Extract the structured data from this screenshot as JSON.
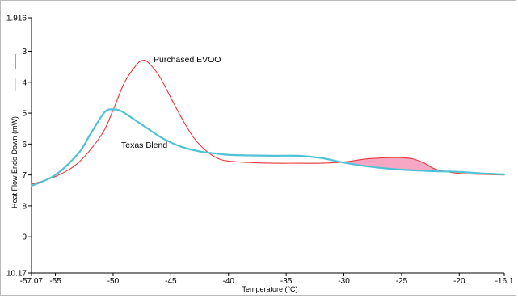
{
  "chart_data": {
    "type": "line",
    "title": "",
    "xlabel": "Temperature (°C)",
    "ylabel": "Heat Flow Endo Down (mW)",
    "xlim": [
      -57.07,
      -16.1
    ],
    "ylim": [
      1.916,
      10.17
    ],
    "y_inverted": true,
    "grid": false,
    "x_ticks": [
      -57.07,
      -55,
      -50,
      -45,
      -40,
      -35,
      -30,
      -25,
      -20,
      -16.1
    ],
    "x_tick_labels": [
      "-57.07",
      "-55",
      "-50",
      "-45",
      "-40",
      "-35",
      "-30",
      "-25",
      "-20",
      "-16.1"
    ],
    "y_ticks": [
      1.916,
      3,
      4,
      5,
      6,
      7,
      8,
      9,
      10.17
    ],
    "y_tick_labels": [
      "1.916",
      "3",
      "4",
      "5",
      "6",
      "7",
      "8",
      "9",
      "10.17"
    ],
    "legend_colors": [
      "#4fc3d6",
      "#8fd0dc"
    ],
    "series": [
      {
        "name": "Purchased EVOO",
        "color": "#e8373a",
        "x": [
          -57.07,
          -55,
          -53,
          -51,
          -50,
          -49,
          -48,
          -47.5,
          -47,
          -46,
          -45,
          -44,
          -43,
          -42,
          -41,
          -40,
          -38,
          -36,
          -34,
          -32,
          -30,
          -28,
          -26,
          -25,
          -24,
          -23,
          -22,
          -20,
          -18,
          -16.1
        ],
        "y": [
          7.3,
          7.05,
          6.6,
          5.7,
          4.9,
          4.0,
          3.45,
          3.3,
          3.35,
          3.8,
          4.5,
          5.2,
          5.8,
          6.2,
          6.45,
          6.55,
          6.6,
          6.62,
          6.62,
          6.62,
          6.58,
          6.48,
          6.44,
          6.44,
          6.48,
          6.62,
          6.82,
          6.95,
          6.98,
          7.0
        ]
      },
      {
        "name": "Texas Blend",
        "color": "#4fc3d6",
        "x": [
          -57.07,
          -55,
          -53,
          -52,
          -51,
          -50.5,
          -50,
          -49.5,
          -49,
          -48,
          -47,
          -46,
          -45,
          -44,
          -43,
          -42,
          -41,
          -40,
          -38,
          -36,
          -34,
          -32,
          -30,
          -28,
          -26,
          -24,
          -22,
          -20,
          -18,
          -16.1
        ],
        "y": [
          7.35,
          7.0,
          6.3,
          5.7,
          5.1,
          4.9,
          4.88,
          4.9,
          5.0,
          5.25,
          5.5,
          5.75,
          5.95,
          6.1,
          6.2,
          6.27,
          6.31,
          6.35,
          6.37,
          6.38,
          6.38,
          6.45,
          6.6,
          6.72,
          6.8,
          6.85,
          6.88,
          6.9,
          6.95,
          6.98
        ]
      }
    ]
  }
}
